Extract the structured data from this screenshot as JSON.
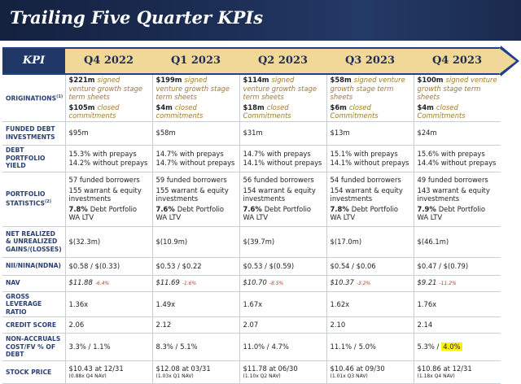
{
  "header": {
    "title": "Trailing Five Quarter KPIs"
  },
  "table": {
    "columns": [
      "KPI",
      "Q4 2022",
      "Q1 2023",
      "Q2 2023",
      "Q3 2023",
      "Q4 2023"
    ],
    "rows": [
      {
        "label": "ORIGINATIONS",
        "label_note": "(1)",
        "cells": [
          [
            [
              "$221m",
              "signed venture growth stage term sheets"
            ],
            [
              "$105m",
              "closed commitments"
            ]
          ],
          [
            [
              "$199m",
              "signed venture growth stage term sheets"
            ],
            [
              "$4m",
              "closed commitments"
            ]
          ],
          [
            [
              "$114m",
              "signed venture growth stage term sheets"
            ],
            [
              "$18m",
              "closed Commitments"
            ]
          ],
          [
            [
              "$58m",
              "signed venture growth stage term sheets"
            ],
            [
              "$6m",
              "closed Commitments"
            ]
          ],
          [
            [
              "$100m",
              "signed venture growth stage term sheets"
            ],
            [
              "$4m",
              "closed Commitments"
            ]
          ]
        ]
      },
      {
        "label": "FUNDED DEBT INVESTMENTS",
        "cells": [
          [
            [
              "$95m"
            ]
          ],
          [
            [
              "$58m"
            ]
          ],
          [
            [
              "$31m"
            ]
          ],
          [
            [
              "$13m"
            ]
          ],
          [
            [
              "$24m"
            ]
          ]
        ]
      },
      {
        "label": "DEBT PORTFOLIO YIELD",
        "cells": [
          [
            [
              "15.3% with prepays"
            ],
            [
              "14.2% without prepays"
            ]
          ],
          [
            [
              "14.7% with prepays"
            ],
            [
              "14.7% without prepays"
            ]
          ],
          [
            [
              "14.7% with prepays"
            ],
            [
              "14.1% without prepays"
            ]
          ],
          [
            [
              "15.1% with prepays"
            ],
            [
              "14.1% without prepays"
            ]
          ],
          [
            [
              "15.6% with prepays"
            ],
            [
              "14.4% without prepays"
            ]
          ]
        ]
      },
      {
        "label": "PORTFOLIO STATISTICS",
        "label_note": "(2)",
        "cells": [
          [
            [
              "57 funded borrowers"
            ],
            [
              "155 warrant & equity investments"
            ],
            [
              "7.8%",
              "Debt Portfolio WA LTV"
            ]
          ],
          [
            [
              "59 funded borrowers"
            ],
            [
              "155 warrant & equity investments"
            ],
            [
              "7.6%",
              "Debt Portfolio WA LTV"
            ]
          ],
          [
            [
              "56 funded borrowers"
            ],
            [
              "154 warrant & equity investments"
            ],
            [
              "7.6%",
              "Debt Portfolio WA LTV"
            ]
          ],
          [
            [
              "54 funded borrowers"
            ],
            [
              "154 warrant & equity investments"
            ],
            [
              "7.8%",
              "Debt Portfolio WA LTV"
            ]
          ],
          [
            [
              "49 funded borrowers"
            ],
            [
              "143 warrant & equity investments"
            ],
            [
              "7.9%",
              "Debt Portfolio WA LTV"
            ]
          ]
        ]
      },
      {
        "label": "NET REALIZED & UNREALIZED GAINS/(LOSSES)",
        "cells": [
          [
            [
              "$(32.3m)"
            ]
          ],
          [
            [
              "$(10.9m)"
            ]
          ],
          [
            [
              "$(39.7m)"
            ]
          ],
          [
            [
              "$(17.0m)"
            ]
          ],
          [
            [
              "$(46.1m)"
            ]
          ]
        ]
      },
      {
        "label": "NII/NINA(NDNA)",
        "cells": [
          [
            [
              "$0.58 / $(0.33)"
            ]
          ],
          [
            [
              "$0.53 / $0.22"
            ]
          ],
          [
            [
              "$0.53 / $(0.59)"
            ]
          ],
          [
            [
              "$0.54 / $0.06"
            ]
          ],
          [
            [
              "$0.47 / $(0.79)"
            ]
          ]
        ]
      },
      {
        "label": "NAV",
        "cells": [
          [
            [
              "$11.88",
              "-6.4%"
            ]
          ],
          [
            [
              "$11.69",
              "-1.6%"
            ]
          ],
          [
            [
              "$10.70",
              "-8.5%"
            ]
          ],
          [
            [
              "$10.37",
              "-3.2%"
            ]
          ],
          [
            [
              "$9.21",
              "-11.2%"
            ]
          ]
        ]
      },
      {
        "label": "GROSS LEVERAGE RATIO",
        "cells": [
          [
            [
              "1.36x"
            ]
          ],
          [
            [
              "1.49x"
            ]
          ],
          [
            [
              "1.67x"
            ]
          ],
          [
            [
              "1.62x"
            ]
          ],
          [
            [
              "1.76x"
            ]
          ]
        ]
      },
      {
        "label": "CREDIT SCORE",
        "cells": [
          [
            [
              "2.06"
            ]
          ],
          [
            [
              "2.12"
            ]
          ],
          [
            [
              "2.07"
            ]
          ],
          [
            [
              "2.10"
            ]
          ],
          [
            [
              "2.14"
            ]
          ]
        ]
      },
      {
        "label": "NON-ACCRUALS COST/FV % OF DEBT",
        "cells": [
          [
            [
              "3.3% /",
              "1.1%"
            ]
          ],
          [
            [
              "8.3% /",
              "5.1%"
            ]
          ],
          [
            [
              "11.0% /",
              "4.7%"
            ]
          ],
          [
            [
              "11.1% /",
              "5.0%"
            ]
          ],
          [
            [
              "5.3% /",
              "4.0%"
            ]
          ]
        ]
      },
      {
        "label": "STOCK PRICE",
        "cells": [
          [
            [
              "$10.43 at 12/31"
            ],
            [
              "(0.88x Q4 NAV)"
            ]
          ],
          [
            [
              "$12.08 at 03/31"
            ],
            [
              "(1.03x Q1 NAV)"
            ]
          ],
          [
            [
              "$11.78 at 06/30"
            ],
            [
              "(1.10x Q2 NAV)"
            ]
          ],
          [
            [
              "$10.46 at 09/30"
            ],
            [
              "(1.01x Q3 NAV)"
            ]
          ],
          [
            [
              "$10.86 at 12/31"
            ],
            [
              "(1.18x Q4 NAV)"
            ]
          ]
        ]
      }
    ]
  }
}
